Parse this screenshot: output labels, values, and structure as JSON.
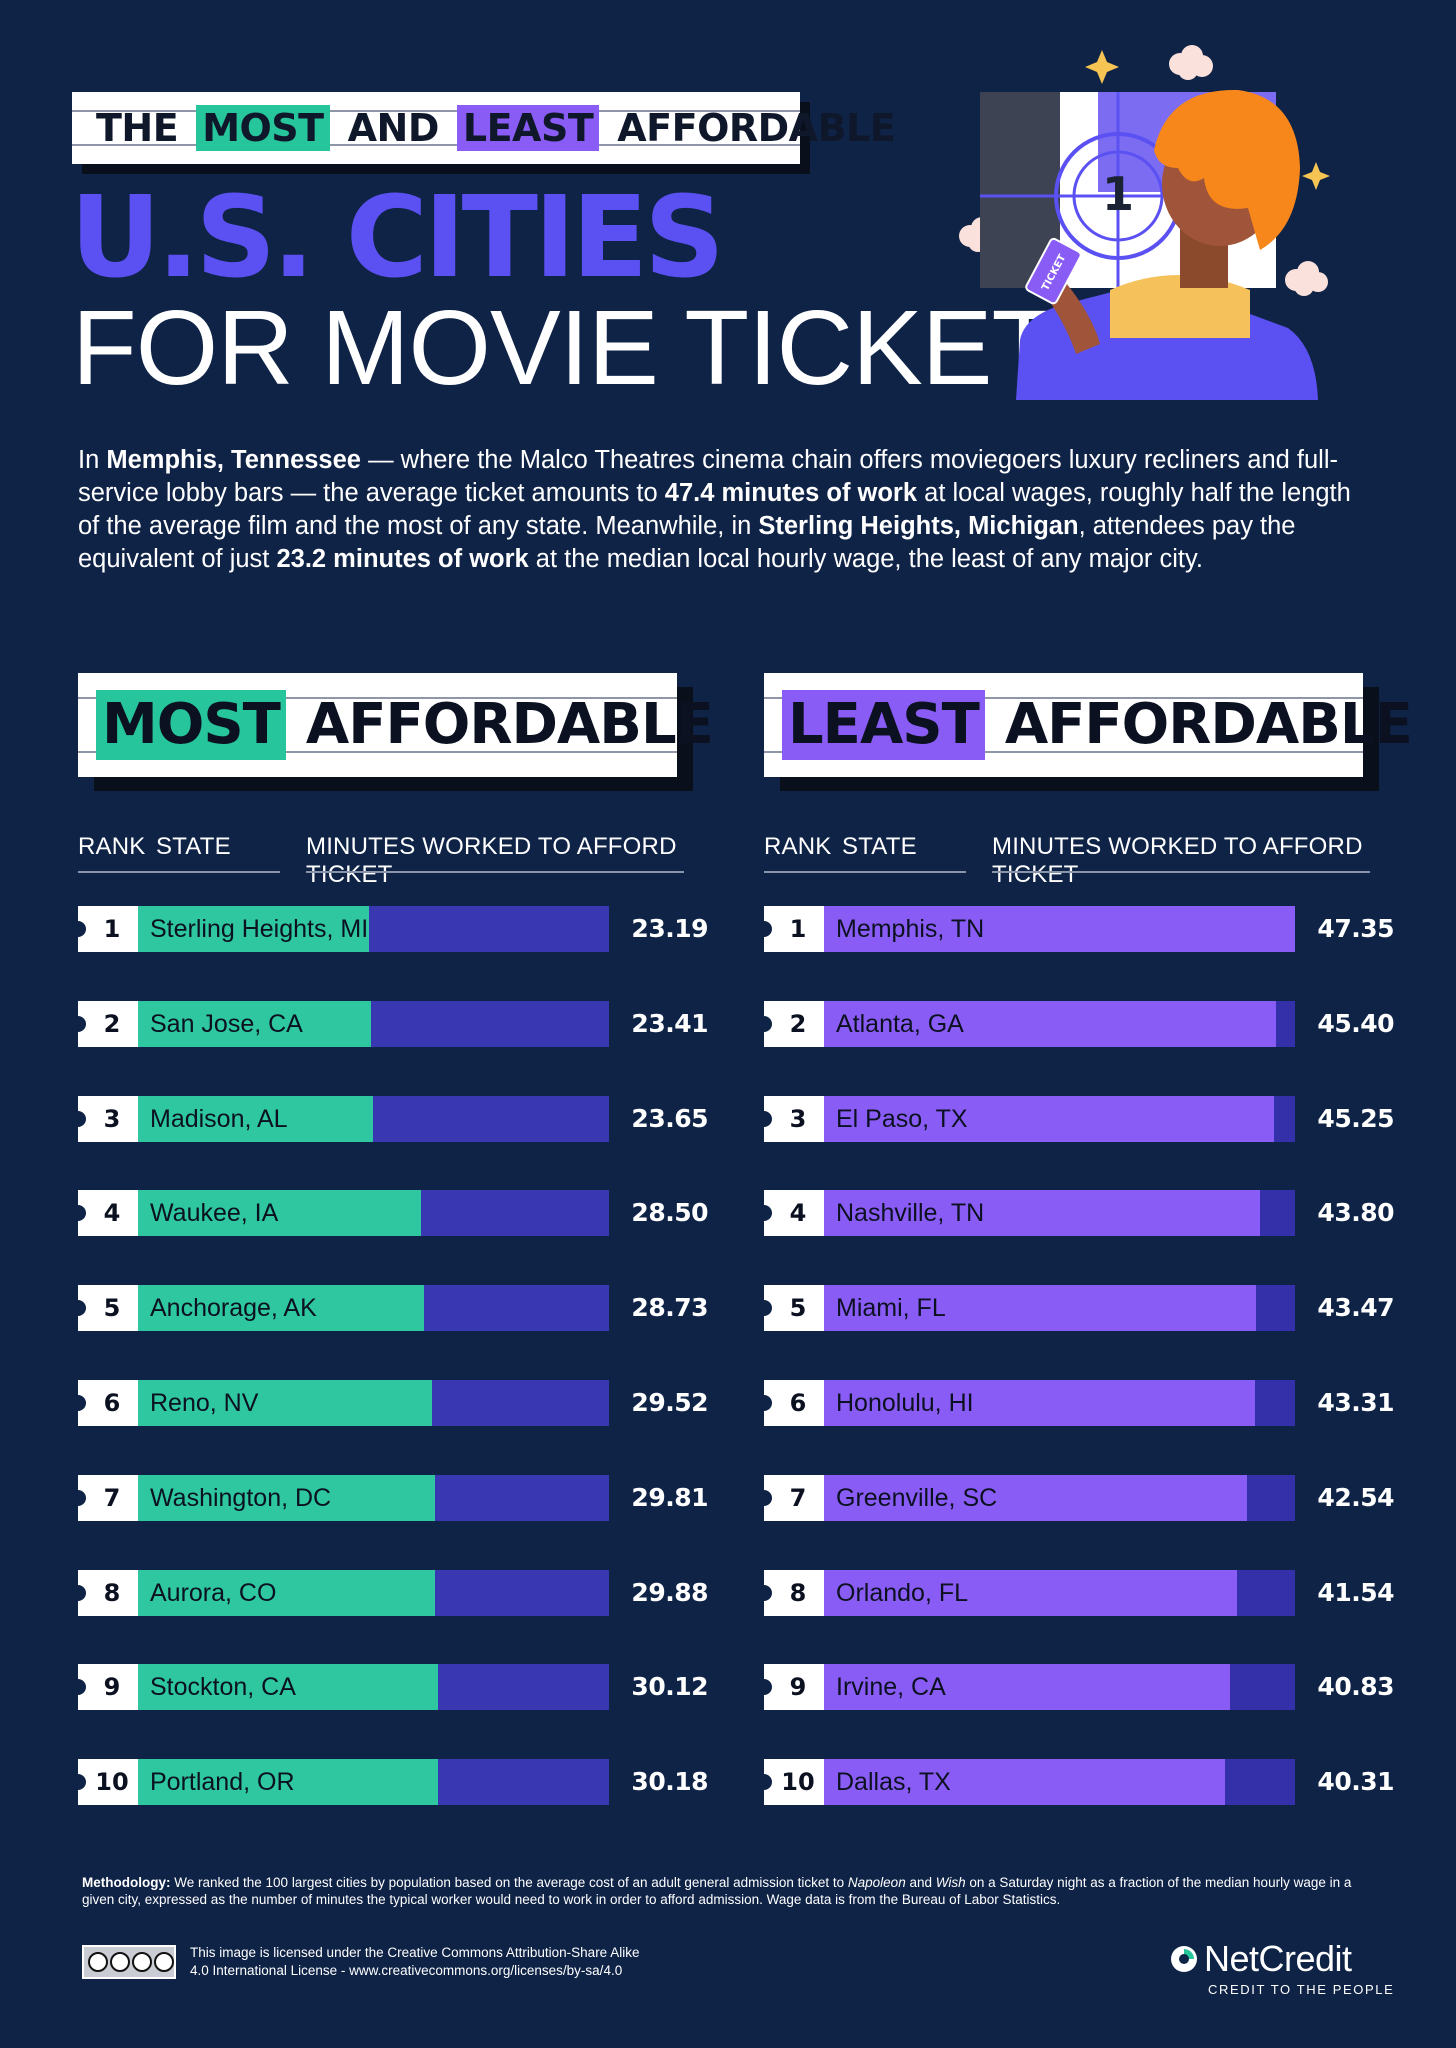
{
  "header": {
    "band_words": [
      "THE",
      "MOST",
      "AND",
      "LEAST",
      "AFFORDABLE"
    ],
    "title_line1": "U.S. CITIES",
    "title_line2": "FOR MOVIE TICKETS"
  },
  "illustration": {
    "countdown_number": "1",
    "ticket_label": "TICKET"
  },
  "intro": {
    "p1": "In ",
    "b1": "Memphis, Tennessee",
    "p2": " — where the Malco Theatres cinema chain offers moviegoers luxury recliners and full-service lobby bars — the average ticket amounts to ",
    "b2": "47.4 minutes of work",
    "p3": " at local wages, roughly half the length of the average film and the most of any state. Meanwhile, in ",
    "b3": "Sterling Heights, Michigan",
    "p4": ", attendees pay the equivalent of just ",
    "b4": "23.2 minutes of work",
    "p5": " at the median local hourly wage, the least of any major city."
  },
  "colors": {
    "background": "#0f2347",
    "most_bar": "#2ec7a0",
    "least_bar": "#8a5cf6",
    "track": "#3a37b2",
    "title_blue": "#5b51f3"
  },
  "chart_data": [
    {
      "type": "bar",
      "title_highlight": "MOST",
      "title_rest": "AFFORDABLE",
      "col_rank": "RANK",
      "col_state": "STATE",
      "col_value": "MINUTES WORKED TO AFFORD TICKET",
      "xlim": [
        0,
        47.35
      ],
      "ranks": [
        "1",
        "2",
        "3",
        "4",
        "5",
        "6",
        "7",
        "8",
        "9",
        "10"
      ],
      "categories": [
        "Sterling Heights, MI",
        "San Jose, CA",
        "Madison, AL",
        "Waukee, IA",
        "Anchorage, AK",
        "Reno, NV",
        "Washington, DC",
        "Aurora, CO",
        "Stockton, CA",
        "Portland, OR"
      ],
      "values": [
        23.19,
        23.41,
        23.65,
        28.5,
        28.73,
        29.52,
        29.81,
        29.88,
        30.12,
        30.18
      ],
      "labels": [
        "23.19",
        "23.41",
        "23.65",
        "28.50",
        "28.73",
        "29.52",
        "29.81",
        "29.88",
        "30.12",
        "30.18"
      ]
    },
    {
      "type": "bar",
      "title_highlight": "LEAST",
      "title_rest": "AFFORDABLE",
      "col_rank": "RANK",
      "col_state": "STATE",
      "col_value": "MINUTES WORKED TO AFFORD TICKET",
      "xlim": [
        0,
        47.35
      ],
      "ranks": [
        "1",
        "2",
        "3",
        "4",
        "5",
        "6",
        "7",
        "8",
        "9",
        "10"
      ],
      "categories": [
        "Memphis, TN",
        "Atlanta, GA",
        "El Paso, TX",
        "Nashville, TN",
        "Miami, FL",
        "Honolulu, HI",
        "Greenville, SC",
        "Orlando, FL",
        "Irvine, CA",
        "Dallas, TX"
      ],
      "values": [
        47.35,
        45.4,
        45.25,
        43.8,
        43.47,
        43.31,
        42.54,
        41.54,
        40.83,
        40.31
      ],
      "labels": [
        "47.35",
        "45.40",
        "45.25",
        "43.80",
        "43.47",
        "43.31",
        "42.54",
        "41.54",
        "40.83",
        "40.31"
      ]
    }
  ],
  "footer": {
    "method_label": "Methodology:",
    "method_p1": " We ranked the 100 largest cities by population based on the average cost of an adult general admission ticket to ",
    "method_i1": "Napoleon",
    "method_p2": " and ",
    "method_i2": "Wish",
    "method_p3": " on a Saturday night as a fraction of the median hourly wage in a given city, expressed as the number of minutes the typical worker would need to work in order to afford admission. Wage data is from the Bureau of Labor Statistics.",
    "license_line1": "This image is licensed under the Creative Commons Attribution-Share Alike",
    "license_line2": "4.0 International License - www.creativecommons.org/licenses/by-sa/4.0",
    "brand_name": "NetCredit",
    "brand_tagline": "CREDIT TO THE PEOPLE"
  }
}
